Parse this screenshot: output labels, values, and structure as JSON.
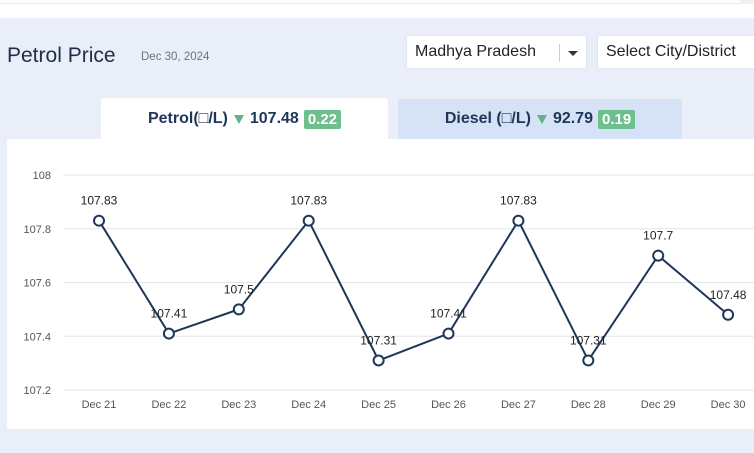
{
  "header": {
    "title": "Petrol Price",
    "date": "Dec 30, 2024"
  },
  "filters": {
    "state": "Madhya Pradesh",
    "city_placeholder": "Select City/District"
  },
  "tabs": {
    "petrol": {
      "label": "Petrol(□/L)",
      "price": "107.48",
      "change": "0.22"
    },
    "diesel": {
      "label": "Diesel (□/L)",
      "price": "92.79",
      "change": "0.19"
    }
  },
  "colors": {
    "line": "#1f3658",
    "down": "#5fb489",
    "badge": "#6dbf8e"
  },
  "chart_data": {
    "type": "line",
    "categories": [
      "Dec 21",
      "Dec 22",
      "Dec 23",
      "Dec 24",
      "Dec 25",
      "Dec 26",
      "Dec 27",
      "Dec 28",
      "Dec 29",
      "Dec 30"
    ],
    "series": [
      {
        "values": [
          107.83,
          107.41,
          107.5,
          107.83,
          107.31,
          107.41,
          107.83,
          107.31,
          107.7,
          107.48
        ]
      }
    ],
    "data_labels": [
      "107.83",
      "107.41",
      "107.5",
      "107.83",
      "107.31",
      "107.41",
      "107.83",
      "107.31",
      "107.7",
      "107.48"
    ],
    "yticks": [
      "108",
      "107.8",
      "107.6",
      "107.4",
      "107.2"
    ],
    "ylim": [
      107.2,
      108
    ],
    "grid": true
  }
}
